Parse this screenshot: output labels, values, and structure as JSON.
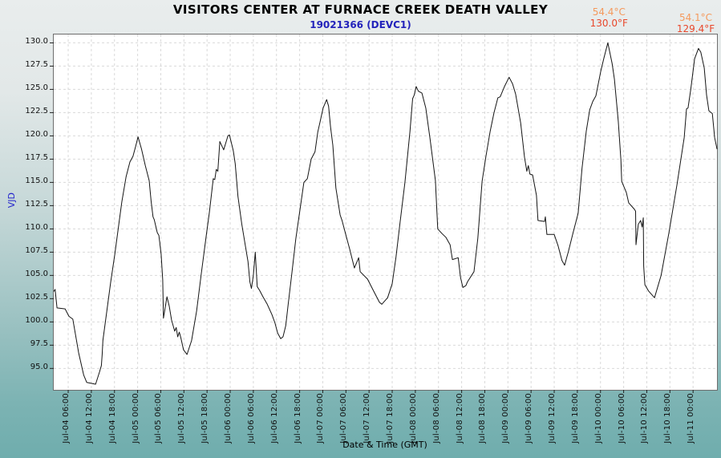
{
  "header": {
    "title": "VISITORS CENTER AT FURNACE CREEK DEATH VALLEY",
    "subtitle": "19021366 (DEVC1)"
  },
  "axes": {
    "y_label": "VJD",
    "x_label": "Date & Time (GMT)"
  },
  "colors": {
    "title": "#000000",
    "subtitle": "#2323bb",
    "y_axis_title": "#2222cc",
    "line": "#141414",
    "grid": "#d9d9d9",
    "tick": "#222222",
    "plot_border": "#6e6e6e",
    "annotation_celsius": "#f5995c",
    "annotation_fahrenheit": "#e8472b",
    "background_top": "#e9eded",
    "background_bottom": "#6fadad"
  },
  "chart_data": {
    "type": "line",
    "title": "VISITORS CENTER AT FURNACE CREEK DEATH VALLEY",
    "subtitle": "19021366 (DEVC1)",
    "xlabel": "Date & Time (GMT)",
    "ylabel": "VJD",
    "units": "degrees F",
    "grid": "dashed",
    "legend": "none",
    "x_axis": {
      "range_hours_since_jul04_0000": [
        2.25,
        174.2
      ],
      "tick_hours": [
        6,
        12,
        18,
        24,
        30,
        36,
        42,
        48,
        54,
        60,
        66,
        72,
        78,
        84,
        90,
        96,
        102,
        108,
        114,
        120,
        126,
        132,
        138,
        144,
        150,
        156,
        162,
        168
      ],
      "tick_labels": [
        "Jul-04 06:00",
        "Jul-04 12:00",
        "Jul-04 18:00",
        "Jul-05 00:00",
        "Jul-05 06:00",
        "Jul-05 12:00",
        "Jul-05 18:00",
        "Jul-06 00:00",
        "Jul-06 06:00",
        "Jul-06 12:00",
        "Jul-06 18:00",
        "Jul-07 00:00",
        "Jul-07 06:00",
        "Jul-07 12:00",
        "Jul-07 18:00",
        "Jul-08 00:00",
        "Jul-08 06:00",
        "Jul-08 12:00",
        "Jul-08 18:00",
        "Jul-09 00:00",
        "Jul-09 06:00",
        "Jul-09 12:00",
        "Jul-09 18:00",
        "Jul-10 00:00",
        "Jul-10 06:00",
        "Jul-10 12:00",
        "Jul-10 18:00",
        "Jul-11 00:00"
      ]
    },
    "y_axis": {
      "range": [
        92.7,
        130.9
      ],
      "ticks": [
        95.0,
        97.5,
        100.0,
        102.5,
        105.0,
        107.5,
        110.0,
        112.5,
        115.0,
        117.5,
        120.0,
        122.5,
        125.0,
        127.5,
        130.0
      ]
    },
    "series": [
      {
        "name": "temperature_F",
        "points": [
          [
            2.3,
            103.3
          ],
          [
            2.6,
            103.5
          ],
          [
            3.1,
            101.5
          ],
          [
            5.2,
            101.4
          ],
          [
            6.2,
            100.6
          ],
          [
            7.2,
            100.3
          ],
          [
            7.9,
            98.6
          ],
          [
            8.7,
            96.7
          ],
          [
            10,
            94.3
          ],
          [
            10.8,
            93.5
          ],
          [
            13.1,
            93.3
          ],
          [
            14.1,
            94.6
          ],
          [
            14.6,
            95.3
          ],
          [
            14.8,
            96.5
          ],
          [
            15,
            98
          ],
          [
            16,
            101.1
          ],
          [
            17,
            104.2
          ],
          [
            18.1,
            107.3
          ],
          [
            19.1,
            110.4
          ],
          [
            19.9,
            112.9
          ],
          [
            21,
            115.6
          ],
          [
            22,
            117.2
          ],
          [
            22.8,
            117.8
          ],
          [
            23.5,
            118.9
          ],
          [
            24.1,
            119.9
          ],
          [
            25,
            118.6
          ],
          [
            26,
            116.8
          ],
          [
            27,
            115.2
          ],
          [
            27.5,
            113
          ],
          [
            28,
            111.3
          ],
          [
            28.3,
            111
          ],
          [
            29.1,
            109.6
          ],
          [
            29.5,
            109.3
          ],
          [
            30.1,
            107.3
          ],
          [
            30.5,
            104.5
          ],
          [
            30.7,
            100.4
          ],
          [
            31.6,
            102.7
          ],
          [
            32.2,
            101.7
          ],
          [
            32.8,
            100.2
          ],
          [
            33.2,
            99.6
          ],
          [
            33.6,
            99
          ],
          [
            34,
            99.4
          ],
          [
            34.4,
            98.4
          ],
          [
            34.8,
            98.9
          ],
          [
            35.2,
            98.3
          ],
          [
            35.9,
            97
          ],
          [
            36.8,
            96.5
          ],
          [
            38,
            98
          ],
          [
            39.3,
            101.2
          ],
          [
            40.5,
            105.2
          ],
          [
            41.8,
            109.3
          ],
          [
            42.6,
            111.8
          ],
          [
            43.6,
            115.4
          ],
          [
            44,
            115.3
          ],
          [
            44.4,
            116.4
          ],
          [
            44.8,
            116.2
          ],
          [
            45.3,
            119.4
          ],
          [
            46.3,
            118.5
          ],
          [
            47.4,
            120
          ],
          [
            47.8,
            120.1
          ],
          [
            48.8,
            118.4
          ],
          [
            49.3,
            117
          ],
          [
            50,
            113.5
          ],
          [
            51,
            110.5
          ],
          [
            52,
            108
          ],
          [
            52.6,
            106.5
          ],
          [
            53.1,
            104.3
          ],
          [
            53.5,
            103.6
          ],
          [
            54,
            105
          ],
          [
            54.5,
            107.5
          ],
          [
            55,
            103.8
          ],
          [
            55.6,
            103.4
          ],
          [
            56.5,
            102.7
          ],
          [
            57.6,
            101.9
          ],
          [
            58.8,
            100.8
          ],
          [
            59.6,
            99.9
          ],
          [
            60.3,
            98.8
          ],
          [
            61.1,
            98.2
          ],
          [
            61.7,
            98.4
          ],
          [
            62.4,
            99.6
          ],
          [
            63,
            101.8
          ],
          [
            64,
            105.3
          ],
          [
            65,
            108.9
          ],
          [
            66.1,
            112.1
          ],
          [
            67.1,
            115
          ],
          [
            68,
            115.4
          ],
          [
            69,
            117.5
          ],
          [
            70,
            118.3
          ],
          [
            70.7,
            120.4
          ],
          [
            71.5,
            121.9
          ],
          [
            72.1,
            123
          ],
          [
            73,
            123.9
          ],
          [
            73.5,
            123.2
          ],
          [
            74,
            121
          ],
          [
            74.6,
            119
          ],
          [
            75.4,
            114.4
          ],
          [
            76.5,
            111.5
          ],
          [
            77,
            110.9
          ],
          [
            77.9,
            109.5
          ],
          [
            79,
            107.8
          ],
          [
            80.2,
            105.8
          ],
          [
            81.3,
            106.9
          ],
          [
            81.7,
            105.4
          ],
          [
            83.6,
            104.6
          ],
          [
            85.2,
            103.3
          ],
          [
            86.7,
            102.1
          ],
          [
            87.3,
            101.9
          ],
          [
            88.8,
            102.6
          ],
          [
            90,
            104.1
          ],
          [
            91,
            107
          ],
          [
            92,
            110.6
          ],
          [
            93.3,
            115
          ],
          [
            94.6,
            120.5
          ],
          [
            95.3,
            124
          ],
          [
            95.7,
            124.4
          ],
          [
            96.2,
            125.3
          ],
          [
            96.8,
            124.8
          ],
          [
            97.7,
            124.6
          ],
          [
            98.7,
            123
          ],
          [
            99.8,
            119.7
          ],
          [
            101.2,
            115.2
          ],
          [
            101.8,
            110
          ],
          [
            102.9,
            109.5
          ],
          [
            103.9,
            109.1
          ],
          [
            105,
            108.3
          ],
          [
            105.6,
            106.7
          ],
          [
            107.1,
            106.9
          ],
          [
            107.7,
            104.8
          ],
          [
            108.3,
            103.7
          ],
          [
            109.1,
            103.9
          ],
          [
            109.5,
            104.3
          ],
          [
            111.2,
            105.4
          ],
          [
            112.2,
            109
          ],
          [
            113.3,
            115.1
          ],
          [
            114.3,
            117.8
          ],
          [
            115.4,
            120.5
          ],
          [
            116.4,
            122.5
          ],
          [
            117.4,
            124.1
          ],
          [
            118,
            124.2
          ],
          [
            119.1,
            125.3
          ],
          [
            120.3,
            126.3
          ],
          [
            121.2,
            125.6
          ],
          [
            122,
            124.5
          ],
          [
            123.3,
            121.4
          ],
          [
            124.3,
            117.7
          ],
          [
            124.9,
            116.2
          ],
          [
            125.3,
            116.8
          ],
          [
            125.7,
            115.9
          ],
          [
            126.4,
            115.8
          ],
          [
            127.4,
            113.6
          ],
          [
            127.8,
            110.9
          ],
          [
            129.5,
            110.8
          ],
          [
            129.7,
            111.3
          ],
          [
            130.1,
            109.4
          ],
          [
            132,
            109.4
          ],
          [
            133,
            108.2
          ],
          [
            134,
            106.6
          ],
          [
            134.7,
            106.1
          ],
          [
            135.7,
            107.6
          ],
          [
            136.9,
            109.6
          ],
          [
            138.2,
            111.7
          ],
          [
            139.2,
            116.5
          ],
          [
            140.3,
            120.5
          ],
          [
            141.2,
            122.8
          ],
          [
            142,
            123.7
          ],
          [
            142.8,
            124.3
          ],
          [
            144.1,
            127
          ],
          [
            144.9,
            128.4
          ],
          [
            145.9,
            130
          ],
          [
            147,
            127.8
          ],
          [
            147.6,
            126.1
          ],
          [
            148.6,
            121.6
          ],
          [
            149.3,
            117.4
          ],
          [
            149.5,
            115.1
          ],
          [
            150.7,
            113.9
          ],
          [
            151.3,
            112.8
          ],
          [
            152.8,
            112.1
          ],
          [
            153.1,
            111.9
          ],
          [
            153.2,
            108.3
          ],
          [
            153.8,
            110.5
          ],
          [
            154.4,
            110.9
          ],
          [
            154.8,
            110.2
          ],
          [
            155.1,
            111.2
          ],
          [
            155.2,
            106
          ],
          [
            155.5,
            104
          ],
          [
            156.5,
            103.3
          ],
          [
            158,
            102.6
          ],
          [
            159.7,
            105
          ],
          [
            161.7,
            109.5
          ],
          [
            163.8,
            114.7
          ],
          [
            165.7,
            119.8
          ],
          [
            166.3,
            122.9
          ],
          [
            166.7,
            123
          ],
          [
            167.4,
            125
          ],
          [
            168.4,
            128.3
          ],
          [
            169.4,
            129.4
          ],
          [
            170,
            129
          ],
          [
            170.9,
            127.3
          ],
          [
            171.5,
            124.4
          ],
          [
            172.1,
            122.7
          ],
          [
            173,
            122.4
          ],
          [
            173.6,
            119.8
          ],
          [
            174.2,
            118.6
          ]
        ]
      }
    ],
    "annotations": [
      {
        "celsius": "54.4°C",
        "fahrenheit": "130.0°F",
        "anchor_hour": 146.4,
        "peak_value": 130.0
      },
      {
        "celsius": "54.1°C",
        "fahrenheit": "129.4°F",
        "anchor_hour": 168.9,
        "peak_value": 129.4
      }
    ]
  }
}
